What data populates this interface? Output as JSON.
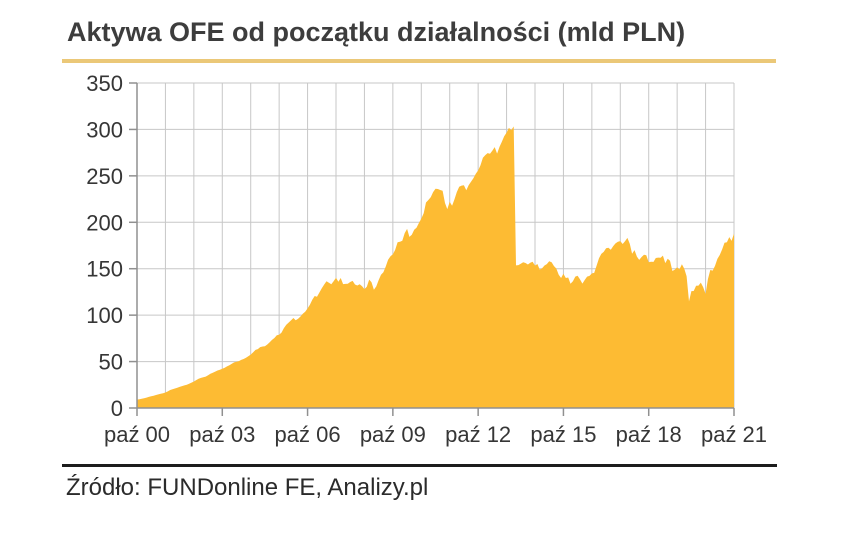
{
  "page": {
    "title": "Aktywa OFE od początku działalności (mld PLN)",
    "source": "Źródło: FUNDonline FE, Analizy.pl"
  },
  "colors": {
    "area_fill": "#FDBB33",
    "title_rule": "#EBC878",
    "grid": "#C7C7C7",
    "axis": "#909090",
    "tick_text": "#363636",
    "title_text": "#3D3D3D",
    "source_rule": "#1C1C1C",
    "source_text": "#2B2B2B",
    "background": "#FFFFFF"
  },
  "chart_data": {
    "type": "area",
    "title": "Aktywa OFE od początku działalności (mld PLN)",
    "xlabel": "",
    "ylabel": "",
    "unit": "mld PLN",
    "x_start": "2000-10",
    "x_step_months": 1,
    "x_tick_labels": [
      "paź 00",
      "paź 03",
      "paź 06",
      "paź 09",
      "paź 12",
      "paź 15",
      "paź 18",
      "paź 21"
    ],
    "x_tick_every_points": 36,
    "x_grid_every_points": 12,
    "ylim": [
      0,
      350
    ],
    "y_ticks": [
      0,
      50,
      100,
      150,
      200,
      250,
      300,
      350
    ],
    "grid": true,
    "legend_position": "none",
    "series": [
      {
        "name": "Aktywa OFE (mld PLN)",
        "values": [
          9.0,
          9.4,
          9.9,
          10.5,
          11.2,
          12.0,
          12.6,
          13.2,
          14.0,
          14.6,
          15.3,
          15.8,
          16.7,
          17.9,
          19.4,
          20.2,
          21.0,
          21.9,
          22.7,
          23.6,
          24.3,
          25.0,
          26.2,
          27.3,
          28.5,
          30.0,
          31.6,
          32.4,
          33.1,
          33.8,
          35.3,
          36.8,
          38.0,
          39.2,
          40.4,
          41.2,
          42.3,
          43.4,
          44.8,
          46.1,
          47.7,
          49.1,
          49.9,
          50.5,
          51.8,
          52.8,
          54.2,
          55.8,
          57.5,
          59.9,
          62.6,
          63.4,
          65.6,
          66.2,
          66.5,
          68.4,
          70.9,
          73.3,
          75.4,
          78.4,
          78.9,
          81.2,
          86.1,
          89.6,
          92.0,
          94.3,
          96.9,
          94.5,
          96.1,
          98.5,
          101.4,
          103.7,
          107.3,
          111.3,
          116.6,
          120.6,
          119.9,
          124.4,
          128.9,
          133.0,
          136.5,
          134.9,
          133.2,
          136.6,
          140.3,
          136.0,
          140.0,
          133.4,
          133.7,
          133.9,
          135.7,
          136.9,
          133.0,
          131.9,
          133.3,
          131.2,
          128.0,
          130.6,
          138.3,
          135.4,
          127.4,
          131.0,
          137.5,
          143.5,
          146.1,
          152.5,
          159.7,
          163.4,
          165.6,
          170.4,
          178.6,
          179.0,
          180.1,
          188.3,
          192.9,
          184.3,
          186.6,
          191.9,
          194.1,
          199.2,
          204.0,
          209.8,
          221.3,
          224.0,
          227.1,
          232.5,
          236.1,
          235.8,
          234.8,
          234.0,
          220.8,
          214.2,
          222.0,
          217.8,
          224.7,
          232.5,
          238.2,
          239.5,
          239.8,
          234.4,
          240.0,
          243.6,
          247.4,
          252.2,
          255.8,
          261.4,
          269.6,
          272.4,
          274.5,
          273.8,
          277.2,
          281.0,
          274.0,
          281.2,
          286.6,
          292.7,
          296.6,
          301.7,
          299.3,
          303.3,
          153.6,
          153.9,
          155.4,
          157.0,
          156.2,
          154.5,
          156.5,
          157.5,
          153.3,
          155.1,
          149.1,
          150.4,
          153.5,
          155.0,
          158.0,
          157.0,
          152.8,
          150.2,
          143.6,
          140.0,
          144.5,
          140.0,
          140.5,
          133.9,
          136.6,
          141.5,
          142.4,
          138.5,
          134.0,
          138.0,
          141.5,
          142.3,
          144.9,
          145.5,
          153.4,
          161.2,
          166.0,
          168.1,
          172.0,
          172.6,
          170.5,
          174.4,
          177.3,
          179.0,
          179.7,
          176.6,
          179.5,
          183.2,
          176.7,
          166.2,
          170.0,
          163.0,
          159.5,
          162.6,
          165.0,
          164.5,
          157.0,
          157.5,
          157.3,
          161.5,
          162.0,
          161.9,
          164.1,
          156.0,
          160.7,
          158.5,
          147.5,
          149.0,
          151.5,
          149.5,
          154.8,
          150.0,
          141.8,
          114.8,
          125.9,
          126.0,
          131.7,
          131.8,
          135.0,
          130.0,
          122.9,
          138.6,
          148.6,
          148.0,
          153.0,
          160.6,
          164.9,
          171.0,
          177.9,
          178.6,
          184.0,
          179.9,
          187.9
        ]
      }
    ]
  }
}
